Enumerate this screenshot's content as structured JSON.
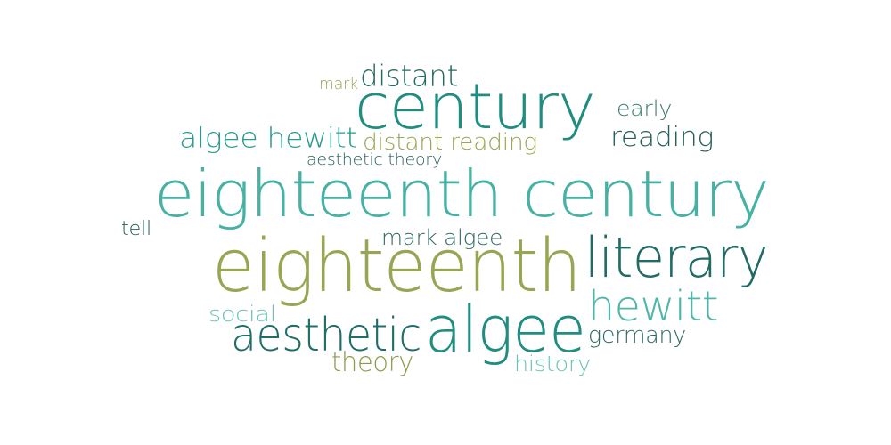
{
  "colors": {
    "background": "#ffffff",
    "teal_dark": "#1f6f68",
    "teal": "#2a9b8f",
    "teal_light": "#4fb6a8",
    "teal_pale": "#6cc2b6",
    "green_dark": "#256b5e",
    "olive": "#9aa653",
    "olive_dark": "#8a964a"
  },
  "words": [
    {
      "id": "century",
      "text": "century",
      "color": "#1f8d80"
    },
    {
      "id": "distant",
      "text": "distant",
      "color": "#246c60"
    },
    {
      "id": "mark",
      "text": "mark",
      "color": "#9aa653"
    },
    {
      "id": "early",
      "text": "early",
      "color": "#3a7a70"
    },
    {
      "id": "reading",
      "text": "reading",
      "color": "#245e58"
    },
    {
      "id": "algee-hewitt",
      "text": "algee hewitt",
      "color": "#2a9b8f"
    },
    {
      "id": "distant-reading",
      "text": "distant reading",
      "color": "#9aa653"
    },
    {
      "id": "aesthetic-theory",
      "text": "aesthetic theory",
      "color": "#245e58"
    },
    {
      "id": "eighteenth-century",
      "text": "eighteenth century",
      "color": "#47b1a3"
    },
    {
      "id": "tell",
      "text": "tell",
      "color": "#245e58"
    },
    {
      "id": "mark-algee",
      "text": "mark algee",
      "color": "#2d6a62"
    },
    {
      "id": "eighteenth",
      "text": "eighteenth",
      "color": "#98a654"
    },
    {
      "id": "literary",
      "text": "literary",
      "color": "#226a64"
    },
    {
      "id": "hewitt",
      "text": "hewitt",
      "color": "#4fb6a8"
    },
    {
      "id": "social",
      "text": "social",
      "color": "#6cc2b6"
    },
    {
      "id": "aesthetic",
      "text": "aesthetic",
      "color": "#1f6f68"
    },
    {
      "id": "algee",
      "text": "algee",
      "color": "#1f8d80"
    },
    {
      "id": "germany",
      "text": "germany",
      "color": "#2b6a63"
    },
    {
      "id": "theory",
      "text": "theory",
      "color": "#8e9b4d"
    },
    {
      "id": "history",
      "text": "history",
      "color": "#6cc2b6"
    }
  ]
}
